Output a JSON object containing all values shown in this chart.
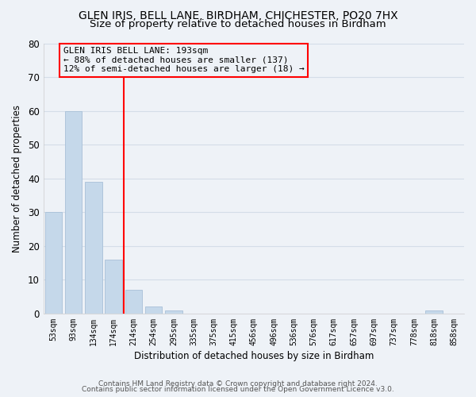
{
  "title": "GLEN IRIS, BELL LANE, BIRDHAM, CHICHESTER, PO20 7HX",
  "subtitle": "Size of property relative to detached houses in Birdham",
  "xlabel": "Distribution of detached houses by size in Birdham",
  "ylabel": "Number of detached properties",
  "bar_labels": [
    "53sqm",
    "93sqm",
    "134sqm",
    "174sqm",
    "214sqm",
    "254sqm",
    "295sqm",
    "335sqm",
    "375sqm",
    "415sqm",
    "456sqm",
    "496sqm",
    "536sqm",
    "576sqm",
    "617sqm",
    "657sqm",
    "697sqm",
    "737sqm",
    "778sqm",
    "818sqm",
    "858sqm"
  ],
  "bar_values": [
    30,
    60,
    39,
    16,
    7,
    2,
    1,
    0,
    0,
    0,
    0,
    0,
    0,
    0,
    0,
    0,
    0,
    0,
    0,
    1,
    0
  ],
  "bar_color": "#c5d8ea",
  "bar_edge_color": "#a8c0d8",
  "grid_color": "#d4dde8",
  "bg_color": "#eef2f7",
  "red_line_x": 3.5,
  "annotation_line1": "GLEN IRIS BELL LANE: 193sqm",
  "annotation_line2": "← 88% of detached houses are smaller (137)",
  "annotation_line3": "12% of semi-detached houses are larger (18) →",
  "ylim": [
    0,
    80
  ],
  "yticks": [
    0,
    10,
    20,
    30,
    40,
    50,
    60,
    70,
    80
  ],
  "footer1": "Contains HM Land Registry data © Crown copyright and database right 2024.",
  "footer2": "Contains public sector information licensed under the Open Government Licence v3.0.",
  "title_fontsize": 10,
  "subtitle_fontsize": 9.5
}
